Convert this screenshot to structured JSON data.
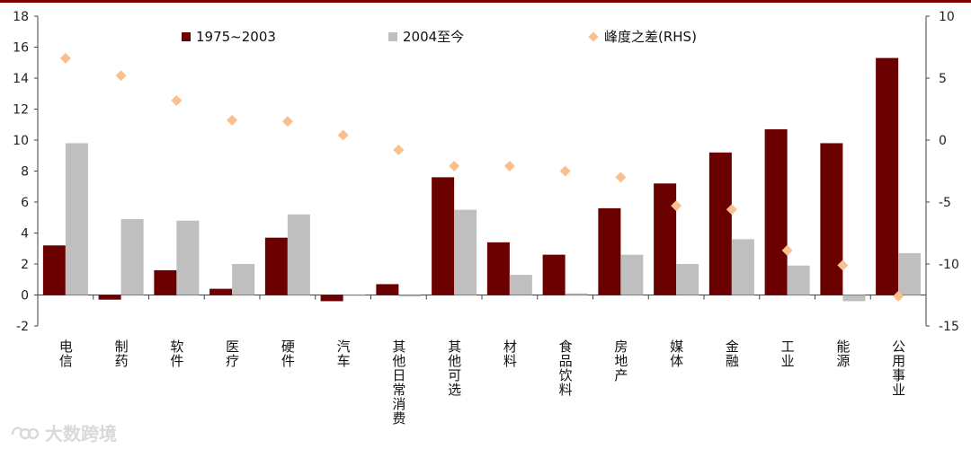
{
  "colors": {
    "series_a": "#6b0000",
    "series_b": "#bfbfbf",
    "diff": "#f9c08f",
    "topline": "#7f0000",
    "axis": "#404040"
  },
  "watermark": {
    "text": "大数跨境"
  },
  "chart_data": {
    "type": "bar",
    "title": "",
    "xlabel": "",
    "ylabel": "",
    "legend_position": "top",
    "categories": [
      "电信",
      "制药",
      "软件",
      "医疗",
      "硬件",
      "汽车",
      "其他日常消费",
      "其他可选",
      "材料",
      "食品饮料",
      "房地产",
      "媒体",
      "金融",
      "工业",
      "能源",
      "公用事业"
    ],
    "series": [
      {
        "name": "1975~2003",
        "axis": "left",
        "type": "bar",
        "values": [
          3.2,
          -0.3,
          1.6,
          0.4,
          3.7,
          -0.4,
          0.7,
          7.6,
          3.4,
          2.6,
          5.6,
          7.2,
          9.2,
          10.7,
          9.8,
          15.3
        ]
      },
      {
        "name": "2004至今",
        "axis": "left",
        "type": "bar",
        "values": [
          9.8,
          4.9,
          4.8,
          2.0,
          5.2,
          0.0,
          -0.1,
          5.5,
          1.3,
          0.1,
          2.6,
          2.0,
          3.6,
          1.9,
          -0.4,
          2.7
        ]
      },
      {
        "name": "峰度之差(RHS)",
        "axis": "right",
        "type": "scatter",
        "values": [
          6.6,
          5.2,
          3.2,
          1.6,
          1.5,
          0.4,
          -0.8,
          -2.1,
          -2.1,
          -2.5,
          -3.0,
          -5.3,
          -5.6,
          -8.9,
          -10.1,
          -12.6
        ]
      }
    ],
    "ylim": [
      -2,
      18
    ],
    "yticks": [
      "-2",
      "0",
      "2",
      "4",
      "6",
      "8",
      "10",
      "12",
      "14",
      "16",
      "18"
    ],
    "y2lim": [
      -15,
      10
    ],
    "y2ticks": [
      "-15",
      "-10",
      "-5",
      "0",
      "5",
      "10"
    ]
  }
}
